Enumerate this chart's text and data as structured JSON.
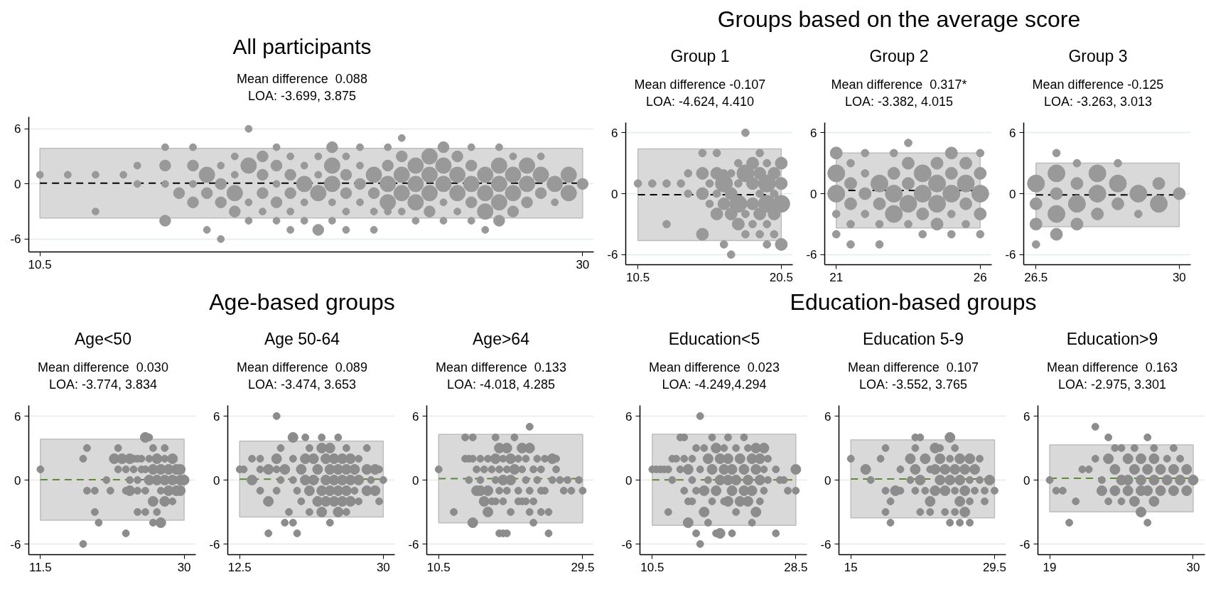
{
  "chart_data": [
    {
      "type": "bubble",
      "title": "All participants",
      "marker": "circle",
      "color": "#999999",
      "grid": "y",
      "xlim": [
        10.1,
        30.4
      ],
      "ylim": [
        -7.4,
        7.3
      ],
      "xticks": [
        10.5,
        30
      ],
      "yticks": [
        -6,
        0,
        6
      ],
      "x": [
        10.5,
        11.5,
        12.5,
        12.5,
        13.5,
        14,
        14,
        15,
        15,
        15,
        15,
        15.5,
        16,
        16,
        16,
        16,
        16.5,
        16.5,
        16.5,
        17,
        17,
        17,
        17,
        17.5,
        17.5,
        17.5,
        17.5,
        18,
        18,
        18,
        18,
        18.5,
        18.5,
        18.5,
        18.5,
        19,
        19,
        19,
        19,
        19,
        19.5,
        19.5,
        19.5,
        19.5,
        19.5,
        20,
        20,
        20,
        20,
        20.5,
        20.5,
        20.5,
        20.5,
        21,
        21,
        21,
        21,
        21,
        21.5,
        21.5,
        21.5,
        21.5,
        21.5,
        22,
        22,
        22,
        22,
        22.5,
        22.5,
        22.5,
        22.5,
        23,
        23,
        23,
        23,
        23,
        23.5,
        23.5,
        23.5,
        23.5,
        23.5,
        24,
        24,
        24,
        24,
        24.5,
        24.5,
        24.5,
        24.5,
        25,
        25,
        25,
        25,
        25,
        25.5,
        25.5,
        25.5,
        25.5,
        26,
        26,
        26,
        26,
        26,
        26.5,
        26.5,
        26.5,
        26.5,
        27,
        27,
        27,
        27,
        27,
        27.5,
        27.5,
        27.5,
        27.5,
        28,
        28,
        28,
        28.5,
        28.5,
        28.5,
        29,
        29,
        29.5,
        29.5,
        30
      ],
      "values": [
        1,
        1,
        1,
        -3,
        1,
        2,
        0,
        4,
        2,
        0,
        -4,
        -1,
        4,
        2,
        0,
        -2,
        1,
        -1,
        -5,
        2,
        0,
        -2,
        -6,
        3,
        1,
        -1,
        -3,
        6,
        2,
        -2,
        -4,
        3,
        1,
        -1,
        -3,
        4,
        2,
        0,
        -2,
        -4,
        3,
        1,
        -1,
        -3,
        -5,
        2,
        0,
        -2,
        -4,
        3,
        1,
        -1,
        -5,
        4,
        2,
        0,
        -2,
        -4,
        3,
        1,
        -1,
        -3,
        -5,
        4,
        2,
        0,
        -2,
        1,
        -1,
        -3,
        -5,
        4,
        2,
        0,
        -2,
        -3,
        5,
        3,
        1,
        -1,
        -3,
        2,
        0,
        -2,
        -4,
        3,
        1,
        -1,
        -3,
        4,
        2,
        0,
        -2,
        -4,
        3,
        1,
        -1,
        -3,
        4,
        2,
        0,
        -2,
        -4,
        1,
        -1,
        -3,
        -5,
        4,
        2,
        0,
        -2,
        -4,
        3,
        1,
        -1,
        -3,
        2,
        0,
        -2,
        3,
        1,
        -1,
        0,
        -2,
        1,
        -1,
        0
      ],
      "sizes": [
        0.2,
        0.2,
        0.2,
        0.2,
        0.2,
        0.2,
        0.2,
        0.2,
        0.5,
        0.2,
        0.5,
        0.5,
        0.2,
        0.5,
        0.2,
        0.5,
        1,
        0.5,
        0.2,
        0.2,
        0.5,
        0.5,
        0.2,
        0.2,
        0.2,
        1,
        0.5,
        0.2,
        1,
        0.2,
        0.2,
        0.5,
        0.5,
        0.5,
        0.2,
        0.2,
        0.5,
        0.2,
        0.5,
        0.2,
        0.2,
        0.5,
        0.5,
        0.2,
        0.2,
        0.2,
        1,
        0.2,
        0.2,
        0.2,
        0.2,
        1,
        0.5,
        0.5,
        1,
        1,
        0.2,
        0.2,
        0.2,
        0.5,
        0.5,
        0.2,
        0.2,
        0.2,
        0.2,
        0.5,
        0.2,
        1,
        0.5,
        0.2,
        0.2,
        0.2,
        0.5,
        1,
        1,
        0.2,
        0.2,
        0.5,
        1,
        1,
        0.2,
        1,
        1,
        1,
        0.2,
        1,
        1,
        1,
        0.5,
        0.5,
        1,
        1,
        0.2,
        0.2,
        0.5,
        1,
        1,
        0.2,
        0.2,
        0.5,
        1,
        0.5,
        0.2,
        1,
        1,
        1,
        0.2,
        0.2,
        1,
        1,
        1,
        0.5,
        0.2,
        1,
        1,
        0.5,
        1,
        1,
        0.5,
        0.2,
        1,
        0.5,
        1,
        0.2,
        1,
        1,
        0.5
      ],
      "subtitle": "Mean difference  0.088\nLOA: -3.699, 3.875",
      "ref_lines": [
        {
          "axis": "y",
          "value": 0.088,
          "color": "#000000",
          "line_style": "dashed"
        }
      ],
      "bands": [
        {
          "axis": "y",
          "from": -3.699,
          "to": 3.875,
          "color": "#d9d9d9"
        }
      ]
    },
    {
      "type": "bubble",
      "title": "Group 1",
      "annotations": [
        "Groups based on the average score"
      ],
      "marker": "circle",
      "color": "#999999",
      "grid": "y",
      "xlim": [
        9.65,
        21.3
      ],
      "ylim": [
        -7,
        7
      ],
      "xticks": [
        10.5,
        20.5
      ],
      "yticks": [
        -6,
        0,
        6
      ],
      "x": [
        10.5,
        11.5,
        12.5,
        12.5,
        13.5,
        14,
        14,
        15,
        15,
        15,
        15,
        15.5,
        15.5,
        16,
        16,
        16,
        16,
        16.5,
        16.5,
        16.5,
        16.5,
        17,
        17,
        17,
        17,
        17.5,
        17.5,
        17.5,
        17.5,
        18,
        18,
        18,
        18,
        18.5,
        18.5,
        18.5,
        18.5,
        19,
        19,
        19,
        19,
        19,
        19.5,
        19.5,
        19.5,
        19.5,
        19.5,
        20,
        20,
        20,
        20,
        20.5,
        20.5,
        20.5,
        20.5
      ],
      "values": [
        1,
        1,
        1,
        -3,
        1,
        2,
        0,
        4,
        2,
        0,
        -4,
        1,
        -1,
        4,
        2,
        0,
        -2,
        2,
        1,
        -1,
        -5,
        2,
        0,
        -2,
        -6,
        3,
        1,
        -1,
        -3,
        6,
        2,
        -2,
        -4,
        3,
        1,
        -1,
        -3,
        4,
        2,
        0,
        -2,
        -4,
        3,
        1,
        -1,
        -3,
        -5,
        2,
        0,
        -2,
        -4,
        3,
        1,
        -1,
        -5
      ],
      "sizes": [
        0.2,
        0.2,
        0.2,
        0.2,
        0.2,
        0.2,
        0.2,
        0.2,
        0.5,
        0.5,
        0.5,
        0.2,
        0.2,
        0.2,
        0.5,
        0.2,
        0.5,
        0.2,
        1,
        0.5,
        0.2,
        0.2,
        0.5,
        0.5,
        0.2,
        0.2,
        0.2,
        1,
        0.5,
        0.2,
        1,
        0.2,
        0.2,
        0.5,
        0.5,
        0.5,
        0.2,
        0.2,
        0.5,
        0.2,
        0.5,
        0.2,
        0.2,
        1,
        1,
        0.2,
        0.2,
        0.5,
        0.2,
        0.5,
        0.2,
        0.5,
        0.5,
        1,
        0.5
      ],
      "subtitle": "Mean difference -0.107\nLOA: -4.624, 4.410",
      "ref_lines": [
        {
          "axis": "y",
          "value": -0.107,
          "color": "#000000",
          "line_style": "dashed"
        }
      ],
      "bands": [
        {
          "axis": "y",
          "from": -4.624,
          "to": 4.41,
          "color": "#d9d9d9"
        }
      ]
    },
    {
      "type": "bubble",
      "title": "Group 2",
      "marker": "circle",
      "color": "#999999",
      "grid": "y",
      "xlim": [
        20.6,
        26.4
      ],
      "ylim": [
        -7,
        7
      ],
      "xticks": [
        21,
        26
      ],
      "yticks": [
        -6,
        0,
        6
      ],
      "x": [
        21,
        21,
        21,
        21,
        21,
        21.5,
        21.5,
        21.5,
        21.5,
        21.5,
        22,
        22,
        22,
        22,
        22.5,
        22.5,
        22.5,
        22.5,
        23,
        23,
        23,
        23,
        23.5,
        23.5,
        23.5,
        23.5,
        23.5,
        24,
        24,
        24,
        24,
        24.5,
        24.5,
        24.5,
        24.5,
        25,
        25,
        25,
        25,
        25,
        25.5,
        25.5,
        25.5,
        25.5,
        26,
        26,
        26,
        26,
        26
      ],
      "values": [
        4,
        2,
        0,
        -2,
        -4,
        3,
        1,
        -1,
        -3,
        -5,
        4,
        2,
        0,
        -2,
        1,
        -1,
        -3,
        -5,
        4,
        2,
        0,
        -2,
        5,
        3,
        1,
        -1,
        -3,
        2,
        0,
        -2,
        -4,
        3,
        1,
        -1,
        -3,
        4,
        2,
        0,
        -2,
        -4,
        3,
        1,
        -1,
        -3,
        4,
        2,
        0,
        -2,
        -4
      ],
      "sizes": [
        0.5,
        1,
        1,
        0.2,
        0.2,
        0.2,
        0.5,
        0.5,
        0.2,
        0.2,
        0.2,
        0.2,
        0.5,
        0.2,
        1,
        0.5,
        0.2,
        0.2,
        0.2,
        0.5,
        1,
        1,
        0.2,
        0.5,
        0.5,
        1,
        0.2,
        1,
        1,
        0.5,
        0.2,
        0.5,
        1,
        1,
        0.5,
        0.5,
        0.5,
        1,
        0.2,
        0.2,
        0.5,
        1,
        0.5,
        0.2,
        0.2,
        0.5,
        1,
        0.5,
        0.2
      ],
      "subtitle": "Mean difference  0.317*\nLOA: -3.382, 4.015",
      "ref_lines": [
        {
          "axis": "y",
          "value": 0.317,
          "color": "#000000",
          "line_style": "dashed"
        }
      ],
      "bands": [
        {
          "axis": "y",
          "from": -3.382,
          "to": 4.015,
          "color": "#d9d9d9"
        }
      ]
    },
    {
      "type": "bubble",
      "title": "Group 3",
      "marker": "circle",
      "color": "#999999",
      "grid": "y",
      "xlim": [
        26.2,
        30.28
      ],
      "ylim": [
        -7,
        7
      ],
      "xticks": [
        26.5,
        30
      ],
      "yticks": [
        -6,
        0,
        6
      ],
      "x": [
        26.5,
        26.5,
        26.5,
        26.5,
        27,
        27,
        27,
        27,
        27,
        27.5,
        27.5,
        27.5,
        27.5,
        28,
        28,
        28,
        28.5,
        28.5,
        28.5,
        29,
        29,
        29.5,
        29.5,
        30
      ],
      "values": [
        1,
        -1,
        -3,
        -5,
        4,
        2,
        0,
        -2,
        -4,
        3,
        1,
        -1,
        -3,
        2,
        0,
        -2,
        3,
        1,
        -1,
        0,
        -2,
        1,
        -1,
        0
      ],
      "sizes": [
        1,
        0.5,
        0.5,
        0.2,
        0.2,
        1,
        0.5,
        1,
        0.5,
        0.2,
        0.5,
        1,
        0.5,
        1,
        1,
        0.5,
        0.2,
        1,
        0.5,
        1,
        0.2,
        0.5,
        1,
        0.5
      ],
      "subtitle": "Mean difference -0.125\nLOA: -3.263, 3.013",
      "ref_lines": [
        {
          "axis": "y",
          "value": -0.125,
          "color": "#000000",
          "line_style": "dashed"
        }
      ],
      "bands": [
        {
          "axis": "y",
          "from": -3.263,
          "to": 3.013,
          "color": "#d9d9d9"
        }
      ]
    },
    {
      "type": "bubble",
      "title": "Age<50",
      "annotations": [
        "Age-based groups"
      ],
      "marker": "circle",
      "color": "#8c8c8c",
      "grid": "y",
      "xlim": [
        10.0,
        31.5
      ],
      "ylim": [
        -7,
        7
      ],
      "xticks": [
        11.5,
        30
      ],
      "yticks": [
        -6,
        0,
        6
      ],
      "x": [
        11.5,
        17,
        17,
        17.5,
        17.5,
        18.5,
        18.5,
        19,
        20,
        20.5,
        21,
        21.5,
        21.5,
        22,
        22.5,
        22.5,
        22.5,
        23,
        23,
        23,
        23.5,
        23.5,
        24,
        24,
        24,
        24,
        24.5,
        24.5,
        25,
        25,
        25,
        25,
        25.5,
        25.5,
        25.5,
        26,
        26,
        26,
        26,
        26.5,
        26.5,
        26.5,
        27,
        27,
        27,
        27.5,
        27.5,
        27.5,
        27.5,
        28,
        28,
        28.5,
        28.5,
        28.5,
        29,
        29,
        29.5,
        29.5,
        29.5,
        30
      ],
      "values": [
        1,
        2,
        -6,
        3,
        -1,
        -1,
        -3,
        -4,
        0,
        -1,
        2,
        3,
        1,
        2,
        -5,
        1,
        -1,
        2,
        0,
        -1,
        1,
        2,
        2,
        0,
        -1,
        -3,
        1,
        2,
        4,
        1,
        -1,
        -3,
        4,
        2,
        0,
        3,
        1,
        -2,
        -4,
        2,
        0,
        -3,
        1,
        -1,
        -4,
        3,
        2,
        0,
        -2,
        1,
        -1,
        2,
        0,
        -2,
        1,
        -1,
        1,
        0,
        -1,
        0
      ],
      "sizes": [
        0.5,
        0.5,
        0.5,
        0.5,
        0.5,
        0.5,
        0.5,
        0.5,
        0.5,
        0.5,
        1,
        0.5,
        0.5,
        1,
        0.5,
        0.5,
        0.5,
        1,
        0.5,
        1,
        0.5,
        0.5,
        0.5,
        0.5,
        0.5,
        0.5,
        0.5,
        0.5,
        1,
        0.5,
        0.5,
        0.5,
        0.5,
        0.5,
        1,
        0.5,
        1,
        1,
        0.5,
        1,
        1,
        0.5,
        1,
        0.5,
        1,
        0.5,
        0.5,
        1,
        1,
        1,
        1,
        1,
        1,
        0.5,
        1,
        1,
        1,
        1,
        1,
        1
      ],
      "subtitle": "Mean difference  0.030\nLOA: -3.774, 3.834",
      "ref_lines": [
        {
          "axis": "y",
          "value": 0.03,
          "color": "#5b8c32",
          "line_style": "dashed"
        }
      ],
      "bands": [
        {
          "axis": "y",
          "from": -3.774,
          "to": 3.834,
          "color": "#d9d9d9"
        }
      ]
    },
    {
      "type": "bubble",
      "title": "Age 50-64",
      "marker": "circle",
      "color": "#8c8c8c",
      "grid": "y",
      "xlim": [
        11.05,
        31.4
      ],
      "ylim": [
        -7,
        7
      ],
      "xticks": [
        12.5,
        30
      ],
      "yticks": [
        -6,
        0,
        6
      ],
      "x": [
        12.5,
        13,
        14,
        14,
        15,
        15,
        15,
        16,
        16,
        16,
        17,
        17,
        17,
        17,
        17.5,
        17.5,
        18,
        18,
        18.5,
        19,
        19,
        19,
        19,
        19.5,
        19.5,
        20,
        20,
        20.5,
        20.5,
        20.5,
        21,
        21,
        21,
        21.5,
        21.5,
        22,
        22,
        22.5,
        22.5,
        22.5,
        22.5,
        23,
        23,
        23,
        23.5,
        23.5,
        23.5,
        23.5,
        24,
        24,
        24,
        24.5,
        24.5,
        24.5,
        24.5,
        25,
        25,
        25,
        25.5,
        25.5,
        25.5,
        25.5,
        26,
        26,
        26,
        26.5,
        26.5,
        27,
        27,
        27,
        28,
        28,
        28,
        28.5,
        29,
        29,
        29.5,
        29.5,
        30
      ],
      "values": [
        1,
        1,
        2,
        0,
        1,
        2,
        -1,
        1,
        -2,
        -5,
        6,
        2,
        1,
        -1,
        3,
        0,
        -4,
        1,
        -3,
        4,
        2,
        0,
        -4,
        -5,
        -1,
        1,
        -2,
        4,
        2,
        0,
        3,
        -1,
        -3,
        2,
        0,
        1,
        -2,
        4,
        3,
        -1,
        -3,
        2,
        0,
        -2,
        3,
        1,
        -1,
        -4,
        2,
        0,
        -2,
        4,
        1,
        -1,
        -3,
        2,
        0,
        -2,
        3,
        1,
        -1,
        -3,
        2,
        0,
        -2,
        1,
        -1,
        2,
        0,
        -2,
        3,
        1,
        -1,
        0,
        1,
        -1,
        1,
        -2,
        0
      ],
      "sizes": [
        0.5,
        0.5,
        0.5,
        1,
        0.5,
        0.5,
        0.5,
        1,
        1,
        0.5,
        0.5,
        1,
        0.5,
        0.5,
        0.5,
        0.5,
        0.5,
        1,
        0.5,
        1,
        0.5,
        0.5,
        0.5,
        0.5,
        0.5,
        1,
        0.5,
        0.5,
        1,
        1,
        0.5,
        1,
        0.5,
        1,
        1,
        1,
        1,
        0.5,
        1,
        1,
        1,
        1,
        1,
        1,
        1,
        1,
        1,
        0.5,
        1,
        1,
        1,
        0.5,
        1,
        1,
        1,
        1,
        1,
        1,
        0.5,
        1,
        1,
        0.5,
        1,
        1,
        1,
        1,
        0.5,
        0.5,
        1,
        0.5,
        0.5,
        1,
        1,
        0.5,
        1,
        1,
        0.5,
        0.5,
        0.5
      ],
      "subtitle": "Mean difference  0.089\nLOA: -3.474, 3.653",
      "ref_lines": [
        {
          "axis": "y",
          "value": 0.089,
          "color": "#5b8c32",
          "line_style": "dashed"
        }
      ],
      "bands": [
        {
          "axis": "y",
          "from": -3.474,
          "to": 3.653,
          "color": "#d9d9d9"
        }
      ]
    },
    {
      "type": "bubble",
      "title": "Age>64",
      "marker": "circle",
      "color": "#8c8c8c",
      "grid": "y",
      "xlim": [
        8.93,
        30.96
      ],
      "ylim": [
        -7,
        7
      ],
      "xticks": [
        10.5,
        29.5
      ],
      "yticks": [
        -6,
        0,
        6
      ],
      "x": [
        10.5,
        12.5,
        14,
        14,
        14.5,
        14.5,
        15,
        15,
        15,
        15.5,
        15.5,
        16,
        16,
        16,
        16.5,
        16.5,
        17,
        17,
        17,
        17.5,
        17.5,
        18,
        18,
        18,
        18,
        18.5,
        18.5,
        18.5,
        18.5,
        19,
        19,
        19,
        19,
        19.5,
        19.5,
        19.5,
        19.5,
        20,
        20,
        20,
        20.5,
        20.5,
        21,
        21,
        21,
        21.5,
        21.5,
        21.5,
        22,
        22,
        22,
        22.5,
        22.5,
        22.5,
        22.5,
        23,
        23,
        23,
        23.5,
        23.5,
        24,
        24,
        24,
        24.5,
        24.5,
        25,
        25,
        25.5,
        25.5,
        26,
        26,
        26.5,
        27,
        27.5,
        28,
        29,
        29.5
      ],
      "values": [
        1,
        -3,
        4,
        2,
        0,
        2,
        4,
        2,
        -4,
        1,
        -1,
        2,
        0,
        -1,
        1,
        -2,
        2,
        -1,
        -3,
        1,
        -2,
        4,
        2,
        0,
        -2,
        3,
        1,
        -1,
        -5,
        2,
        0,
        -2,
        -5,
        3,
        1,
        -1,
        -5,
        2,
        0,
        -3,
        4,
        1,
        2,
        -1,
        -2,
        3,
        1,
        -2,
        2,
        0,
        -2,
        5,
        3,
        -1,
        -3,
        1,
        -2,
        -4,
        2,
        0,
        1,
        -1,
        -3,
        2,
        -1,
        -5,
        -3,
        2,
        0,
        2,
        1,
        0,
        -1,
        0,
        -1,
        0,
        -1
      ],
      "sizes": [
        0.5,
        0.5,
        0.5,
        0.5,
        0.5,
        0.5,
        0.5,
        0.5,
        1,
        0.5,
        1,
        0.5,
        0.5,
        1,
        0.5,
        1,
        0.5,
        1,
        1,
        0.5,
        0.5,
        0.5,
        1,
        0.5,
        0.5,
        1,
        0.5,
        0.5,
        0.5,
        0.5,
        1,
        0.5,
        0.5,
        1,
        0.5,
        0.5,
        0.5,
        1,
        1,
        0.5,
        0.5,
        1,
        0.5,
        0.5,
        0.5,
        1,
        0.5,
        0.5,
        0.5,
        0.5,
        0.5,
        0.5,
        1,
        0.5,
        0.5,
        0.5,
        0.5,
        0.5,
        0.5,
        0.5,
        0.5,
        0.5,
        0.5,
        0.5,
        0.5,
        0.5,
        0.5,
        1,
        0.5,
        0.5,
        0.5,
        0.5,
        0.5,
        0.5,
        0.5,
        0.5,
        0.5
      ],
      "subtitle": "Mean difference  0.133\nLOA: -4.018, 4.285",
      "ref_lines": [
        {
          "axis": "y",
          "value": 0.133,
          "color": "#5b8c32",
          "line_style": "dashed"
        }
      ],
      "bands": [
        {
          "axis": "y",
          "from": -4.018,
          "to": 4.285,
          "color": "#d9d9d9"
        }
      ]
    },
    {
      "type": "bubble",
      "title": "Education<5",
      "annotations": [
        "Education-based groups"
      ],
      "marker": "circle",
      "color": "#8c8c8c",
      "grid": "y",
      "xlim": [
        8.95,
        29.9
      ],
      "ylim": [
        -7,
        7
      ],
      "xticks": [
        10.5,
        28.5
      ],
      "yticks": [
        -6,
        0,
        6
      ],
      "x": [
        10.5,
        11,
        11.5,
        12,
        12.5,
        12.5,
        13,
        13,
        13.5,
        14,
        14,
        14.5,
        14.5,
        14.5,
        15,
        15,
        15,
        15.5,
        15.5,
        15.5,
        16,
        16,
        16,
        16.5,
        16.5,
        16.5,
        17,
        17,
        17,
        17.5,
        17.5,
        17.5,
        18,
        18,
        18,
        18.5,
        18.5,
        18.5,
        19,
        19,
        19,
        19.5,
        19.5,
        19.5,
        20,
        20,
        20,
        20,
        20.5,
        20.5,
        20.5,
        21,
        21,
        21,
        21.5,
        21.5,
        22,
        22,
        22,
        22.5,
        22.5,
        22.5,
        23,
        23,
        23,
        23.5,
        23.5,
        23.5,
        24,
        24,
        24,
        24.5,
        24.5,
        24.5,
        25,
        25,
        26,
        26,
        26.5,
        27,
        27.5,
        28.5,
        28.5
      ],
      "values": [
        1,
        1,
        1,
        1,
        1,
        -3,
        2,
        0,
        2,
        4,
        1,
        4,
        2,
        -1,
        1,
        -2,
        -4,
        2,
        0,
        -2,
        -5,
        3,
        -1,
        6,
        1,
        -6,
        3,
        -3,
        -1,
        2,
        0,
        -4,
        4,
        1,
        -2,
        3,
        -1,
        -5,
        2,
        0,
        -5,
        3,
        1,
        -2,
        4,
        2,
        0,
        -2,
        -5,
        1,
        -1,
        3,
        0,
        -3,
        2,
        -2,
        4,
        1,
        -1,
        3,
        0,
        -2,
        2,
        -1,
        -4,
        3,
        1,
        -3,
        2,
        0,
        -2,
        3,
        1,
        -1,
        2,
        0,
        -5,
        1,
        0,
        0,
        -1,
        1,
        -1
      ],
      "sizes": [
        0.5,
        0.5,
        0.5,
        0.5,
        0.5,
        0.5,
        0.5,
        0.5,
        0.5,
        0.5,
        0.5,
        0.5,
        0.5,
        0.5,
        1,
        0.5,
        1,
        0.5,
        0.5,
        0.5,
        0.5,
        0.5,
        0.5,
        0.5,
        0.5,
        0.5,
        0.5,
        1,
        1,
        1,
        0.5,
        0.5,
        0.5,
        1,
        0.5,
        1,
        1,
        0.5,
        1,
        1,
        1,
        0.5,
        1,
        0.5,
        0.5,
        1,
        1,
        1,
        0.5,
        1,
        1,
        0.5,
        1,
        0.5,
        1,
        1,
        0.5,
        1,
        1,
        0.5,
        1,
        1,
        1,
        1,
        0.5,
        1,
        1,
        1,
        1,
        1,
        0.5,
        1,
        0.5,
        0.5,
        0.5,
        0.5,
        0.5,
        0.5,
        0.5,
        0.5,
        0.5,
        1,
        0.5
      ],
      "subtitle": "Mean difference  0.023\nLOA: -4.249,4.294",
      "ref_lines": [
        {
          "axis": "y",
          "value": 0.023,
          "color": "#5b8c32",
          "line_style": "dashed"
        }
      ],
      "bands": [
        {
          "axis": "y",
          "from": -4.249,
          "to": 4.294,
          "color": "#d9d9d9"
        }
      ]
    },
    {
      "type": "bubble",
      "title": "Education 5-9",
      "marker": "circle",
      "color": "#8c8c8c",
      "grid": "y",
      "xlim": [
        13.8,
        30.65
      ],
      "ylim": [
        -7,
        7
      ],
      "xticks": [
        15,
        29.5
      ],
      "yticks": [
        -6,
        0,
        6
      ],
      "x": [
        15,
        16.5,
        17,
        18,
        18.5,
        18.5,
        18.5,
        19,
        19,
        19.5,
        20,
        20,
        21,
        21,
        21.5,
        21.5,
        21.5,
        21.5,
        22,
        22,
        22,
        22.5,
        22.5,
        23,
        23,
        23,
        23.5,
        23.5,
        23.5,
        24,
        24,
        24,
        24.5,
        24.5,
        24.5,
        25,
        25,
        25,
        25,
        25.5,
        25.5,
        25.5,
        25.5,
        26,
        26,
        26,
        26,
        26.5,
        26.5,
        26.5,
        27,
        27,
        27,
        27,
        27.5,
        27.5,
        28,
        28,
        28.5,
        28.5,
        29,
        29.5
      ],
      "values": [
        2,
        1,
        0,
        2,
        3,
        -1,
        -3,
        -2,
        -4,
        -1,
        1,
        -1,
        2,
        0,
        4,
        3,
        1,
        -1,
        4,
        0,
        -3,
        2,
        -1,
        1,
        -2,
        -3,
        3,
        1,
        -1,
        2,
        0,
        3,
        1,
        -1,
        -3,
        4,
        2,
        0,
        -4,
        3,
        1,
        -1,
        -3,
        2,
        0,
        -2,
        -4,
        1,
        -1,
        -3,
        2,
        0,
        -2,
        -4,
        1,
        -1,
        2,
        0,
        -1,
        -2,
        0,
        -1
      ],
      "sizes": [
        0.5,
        1,
        0.5,
        0.5,
        0.5,
        0.5,
        0.5,
        0.5,
        0.5,
        1,
        0.5,
        0.5,
        1,
        0.5,
        0.5,
        0.5,
        1,
        0.5,
        0.5,
        1,
        0.5,
        1,
        0.5,
        0.5,
        1,
        0.5,
        1,
        1,
        1,
        1,
        1,
        0.5,
        1,
        1,
        0.5,
        1,
        0.5,
        1,
        0.5,
        0.5,
        1,
        0.5,
        0.5,
        1,
        1,
        1,
        0.5,
        1,
        1,
        1,
        1,
        0.5,
        0.5,
        0.5,
        1,
        0.5,
        0.5,
        0.5,
        0.5,
        0.5,
        1,
        0.5
      ],
      "subtitle": "Mean difference  0.107\nLOA: -3.552, 3.765",
      "ref_lines": [
        {
          "axis": "y",
          "value": 0.107,
          "color": "#5b8c32",
          "line_style": "dashed"
        }
      ],
      "bands": [
        {
          "axis": "y",
          "from": -3.552,
          "to": 3.765,
          "color": "#d9d9d9"
        }
      ]
    },
    {
      "type": "bubble",
      "title": "Education>9",
      "marker": "circle",
      "color": "#8c8c8c",
      "grid": "y",
      "xlim": [
        18.1,
        30.9
      ],
      "ylim": [
        -7,
        7
      ],
      "xticks": [
        19,
        30
      ],
      "yticks": [
        -6,
        0,
        6
      ],
      "x": [
        19,
        19.5,
        20,
        20.5,
        21,
        21.5,
        22,
        22.5,
        22.5,
        23,
        23,
        23.5,
        23.5,
        23.5,
        24,
        24,
        24,
        24.5,
        24.5,
        24.5,
        25,
        25,
        25,
        25.5,
        25.5,
        25.5,
        26,
        26,
        26,
        26,
        26.5,
        26.5,
        26.5,
        26.5,
        27,
        27,
        27,
        27,
        27.5,
        27.5,
        28,
        28,
        28.5,
        28.5,
        28.5,
        29,
        29,
        29.5,
        29.5,
        30
      ],
      "values": [
        0,
        -1,
        -1,
        -4,
        -2,
        1,
        1,
        5,
        2,
        -1,
        0,
        4,
        2,
        -2,
        1,
        -1,
        3,
        3,
        0,
        -2,
        2,
        0,
        -1,
        3,
        1,
        -2,
        2,
        0,
        -3,
        -1,
        4,
        1,
        -1,
        -4,
        3,
        2,
        0,
        -2,
        1,
        -1,
        2,
        0,
        3,
        1,
        -1,
        0,
        2,
        1,
        -1,
        0
      ],
      "sizes": [
        0.5,
        0.5,
        0.5,
        0.5,
        0.5,
        0.5,
        0.5,
        0.5,
        0.5,
        1,
        0.5,
        0.5,
        1,
        0.5,
        1,
        1,
        0.5,
        0.5,
        1,
        0.5,
        1,
        1,
        1,
        0.5,
        1,
        1,
        1,
        1,
        1,
        1,
        0.5,
        1,
        1,
        0.5,
        0.5,
        1,
        1,
        1,
        1,
        1,
        0.5,
        1,
        0.5,
        1,
        1,
        1,
        0.5,
        1,
        1,
        1
      ],
      "subtitle": "Mean difference  0.163\nLOA: -2.975, 3.301",
      "ref_lines": [
        {
          "axis": "y",
          "value": 0.163,
          "color": "#5b8c32",
          "line_style": "dashed"
        }
      ],
      "bands": [
        {
          "axis": "y",
          "from": -2.975,
          "to": 3.301,
          "color": "#d9d9d9"
        }
      ]
    }
  ]
}
